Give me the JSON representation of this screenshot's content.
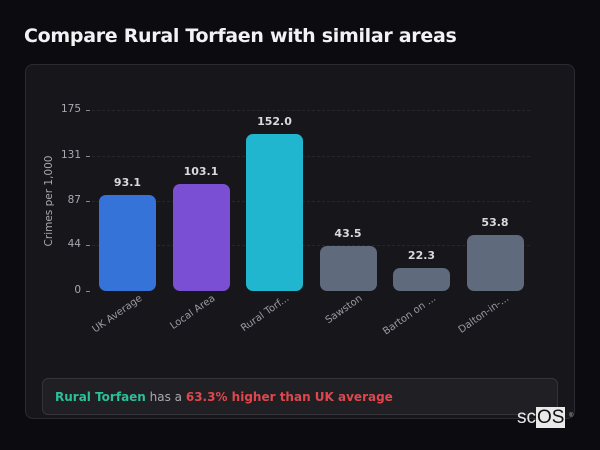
{
  "page": {
    "title": "Compare Rural Torfaen with similar areas"
  },
  "chart_data": {
    "type": "bar",
    "title": "Compare Rural Torfaen with similar areas",
    "xlabel": "",
    "ylabel": "Crimes per 1,000",
    "ylim": [
      0,
      175
    ],
    "yticks": [
      0,
      44,
      87,
      131,
      175
    ],
    "grid": true,
    "legend": "none",
    "categories": [
      "UK Average",
      "Local Area",
      "Rural Torf...",
      "Sawston",
      "Barton on ...",
      "Dalton-in-..."
    ],
    "values": [
      93.1,
      103.1,
      152.0,
      43.5,
      22.3,
      53.8
    ],
    "value_labels": [
      "93.1",
      "103.1",
      "152.0",
      "43.5",
      "22.3",
      "53.8"
    ],
    "colors": [
      "#3573d9",
      "#7b4fd3",
      "#21b6cf",
      "#5f6a7d",
      "#5f6a7d",
      "#5f6a7d"
    ]
  },
  "insight": {
    "area_name": "Rural Torfaen",
    "connector": " has a ",
    "difference": "63.3% higher than UK average"
  },
  "branding": {
    "logo_prefix": "sc",
    "logo_suffix": "OS",
    "logo_mark": "®"
  }
}
